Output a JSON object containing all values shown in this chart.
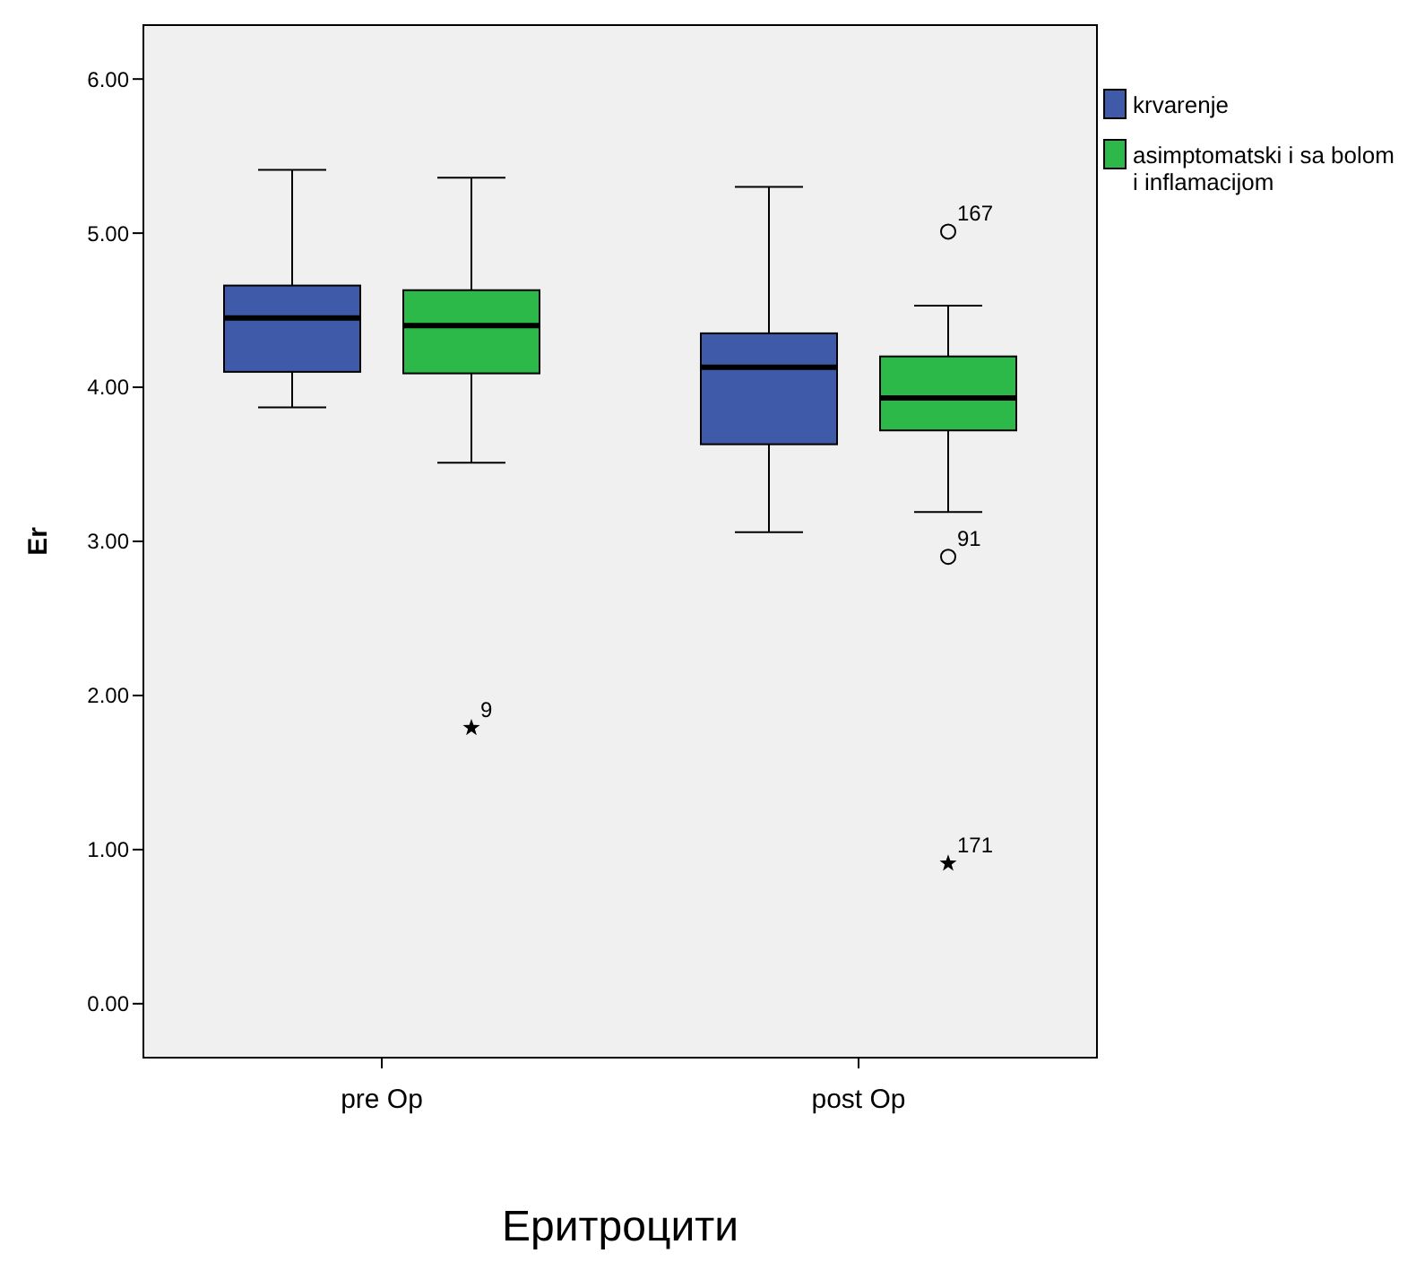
{
  "chart_data": {
    "type": "box",
    "xlabel": "Еритроцити",
    "ylabel": "Er",
    "categories": [
      "pre Op",
      "post Op"
    ],
    "series": [
      {
        "name": "krvarenje",
        "color": "#3f5aa9",
        "boxes": [
          {
            "low": 3.87,
            "q1": 4.1,
            "median": 4.45,
            "q3": 4.66,
            "high": 5.41
          },
          {
            "low": 3.06,
            "q1": 3.63,
            "median": 4.13,
            "q3": 4.35,
            "high": 5.3
          }
        ]
      },
      {
        "name": "asimptomatski i sa bolom i inflamacijom",
        "color": "#2db84a",
        "boxes": [
          {
            "low": 3.51,
            "q1": 4.09,
            "median": 4.4,
            "q3": 4.63,
            "high": 5.36,
            "outliers": [
              1.79
            ]
          },
          {
            "low": 3.19,
            "q1": 3.72,
            "median": 3.93,
            "q3": 4.2,
            "high": 4.53,
            "outliers": [
              5.01,
              2.9,
              0.91
            ]
          }
        ]
      }
    ],
    "ylim": [
      -0.35,
      6.35
    ],
    "yticks": [
      {
        "value": 0,
        "label": "0.00"
      },
      {
        "value": 1,
        "label": "1.00"
      },
      {
        "value": 2,
        "label": "2.00"
      },
      {
        "value": 3,
        "label": "3.00"
      },
      {
        "value": 4,
        "label": "4.00"
      },
      {
        "value": 5,
        "label": "5.00"
      },
      {
        "value": 6,
        "label": "6.00"
      }
    ],
    "legend": "right",
    "grid": false,
    "annotations": [
      "9",
      "167",
      "91",
      "171"
    ]
  }
}
